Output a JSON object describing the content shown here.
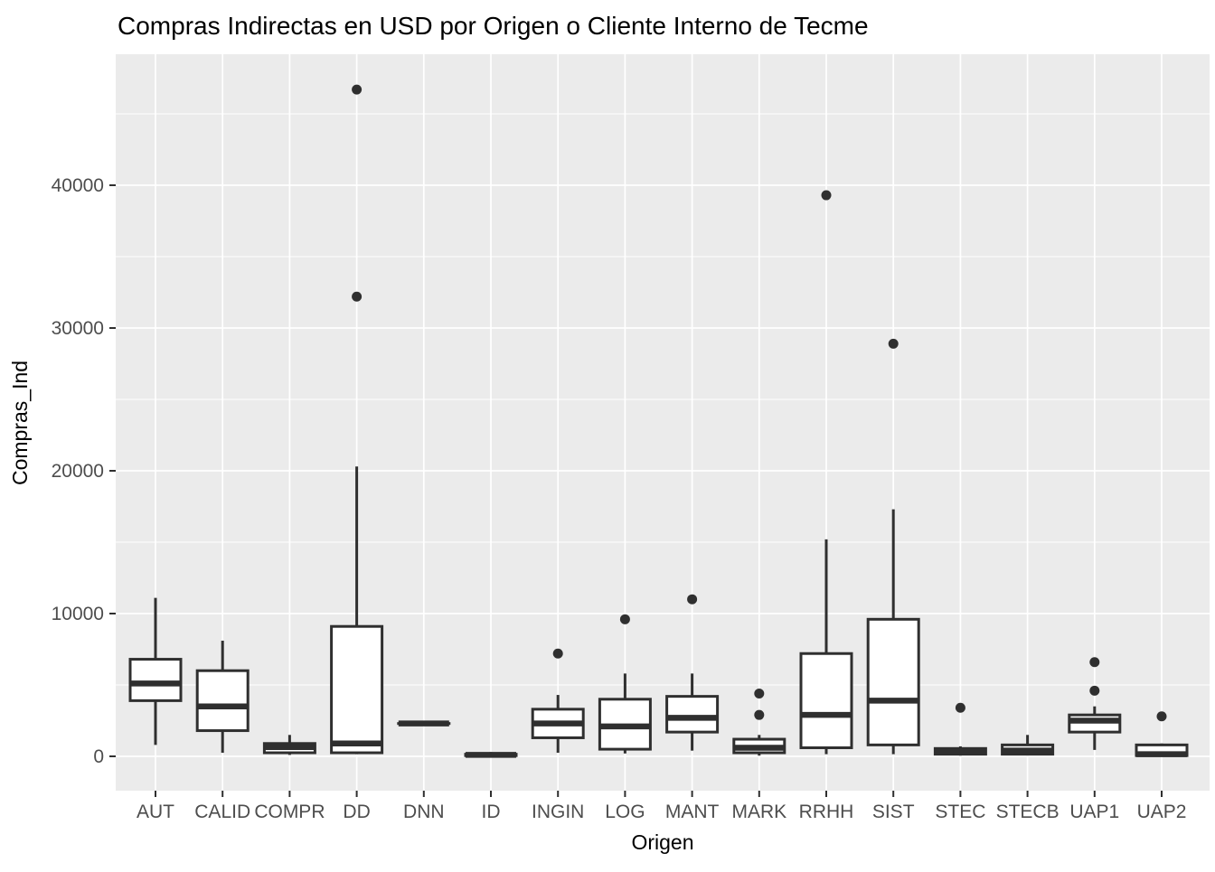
{
  "chart_data": {
    "type": "boxplot",
    "title": "Compras Indirectas en USD por Origen o Cliente Interno de Tecme",
    "xlabel": "Origen",
    "ylabel": "Compras_Ind",
    "legend": "none",
    "grid": "on",
    "colors": {
      "panel_background": "#EBEBEB",
      "grid_line": "#FFFFFF",
      "box_stroke": "#2F2F2F",
      "box_fill": "#FFFFFF",
      "outlier_point": "#2F2F2F",
      "axis_tick_text": "#4D4D4D",
      "title_text": "#000000"
    },
    "y_axis": {
      "ticks": [
        0,
        10000,
        20000,
        30000,
        40000
      ],
      "minor_ticks": [
        5000,
        15000,
        25000,
        35000,
        45000
      ],
      "range": [
        -2400,
        49200
      ]
    },
    "categories": [
      "AUT",
      "CALID",
      "COMPR",
      "DD",
      "DNN",
      "ID",
      "INGIN",
      "LOG",
      "MANT",
      "MARK",
      "RRHH",
      "SIST",
      "STEC",
      "STECB",
      "UAP1",
      "UAP2"
    ],
    "boxes": [
      {
        "category": "AUT",
        "whisker_low": 800,
        "q1": 3900,
        "median": 5100,
        "q3": 6800,
        "whisker_high": 11100,
        "outliers": []
      },
      {
        "category": "CALID",
        "whisker_low": 250,
        "q1": 1800,
        "median": 3500,
        "q3": 6000,
        "whisker_high": 8100,
        "outliers": []
      },
      {
        "category": "COMPR",
        "whisker_low": 100,
        "q1": 250,
        "median": 650,
        "q3": 900,
        "whisker_high": 1500,
        "outliers": []
      },
      {
        "category": "DD",
        "whisker_low": 150,
        "q1": 250,
        "median": 900,
        "q3": 9100,
        "whisker_high": 20300,
        "outliers": [
          46700,
          32200
        ]
      },
      {
        "category": "DNN",
        "whisker_low": 2300,
        "q1": 2300,
        "median": 2300,
        "q3": 2300,
        "whisker_high": 2300,
        "outliers": []
      },
      {
        "category": "ID",
        "whisker_low": 0,
        "q1": 50,
        "median": 100,
        "q3": 150,
        "whisker_high": 300,
        "outliers": []
      },
      {
        "category": "INGIN",
        "whisker_low": 250,
        "q1": 1300,
        "median": 2300,
        "q3": 3300,
        "whisker_high": 4300,
        "outliers": [
          7200
        ]
      },
      {
        "category": "LOG",
        "whisker_low": 200,
        "q1": 500,
        "median": 2100,
        "q3": 4000,
        "whisker_high": 5800,
        "outliers": [
          9600
        ]
      },
      {
        "category": "MANT",
        "whisker_low": 400,
        "q1": 1700,
        "median": 2700,
        "q3": 4200,
        "whisker_high": 5800,
        "outliers": [
          11000
        ]
      },
      {
        "category": "MARK",
        "whisker_low": 50,
        "q1": 250,
        "median": 600,
        "q3": 1200,
        "whisker_high": 1500,
        "outliers": [
          4400,
          2900
        ]
      },
      {
        "category": "RRHH",
        "whisker_low": 150,
        "q1": 600,
        "median": 2900,
        "q3": 7200,
        "whisker_high": 15200,
        "outliers": [
          39300
        ]
      },
      {
        "category": "SIST",
        "whisker_low": 150,
        "q1": 800,
        "median": 3900,
        "q3": 9600,
        "whisker_high": 17300,
        "outliers": [
          28900
        ]
      },
      {
        "category": "STEC",
        "whisker_low": 50,
        "q1": 150,
        "median": 350,
        "q3": 550,
        "whisker_high": 700,
        "outliers": [
          3400
        ]
      },
      {
        "category": "STECB",
        "whisker_low": 60,
        "q1": 150,
        "median": 400,
        "q3": 800,
        "whisker_high": 1500,
        "outliers": []
      },
      {
        "category": "UAP1",
        "whisker_low": 450,
        "q1": 1700,
        "median": 2500,
        "q3": 2900,
        "whisker_high": 3500,
        "outliers": [
          6600,
          4600
        ]
      },
      {
        "category": "UAP2",
        "whisker_low": 0,
        "q1": 50,
        "median": 150,
        "q3": 800,
        "whisker_high": 900,
        "outliers": [
          2800
        ]
      }
    ]
  }
}
